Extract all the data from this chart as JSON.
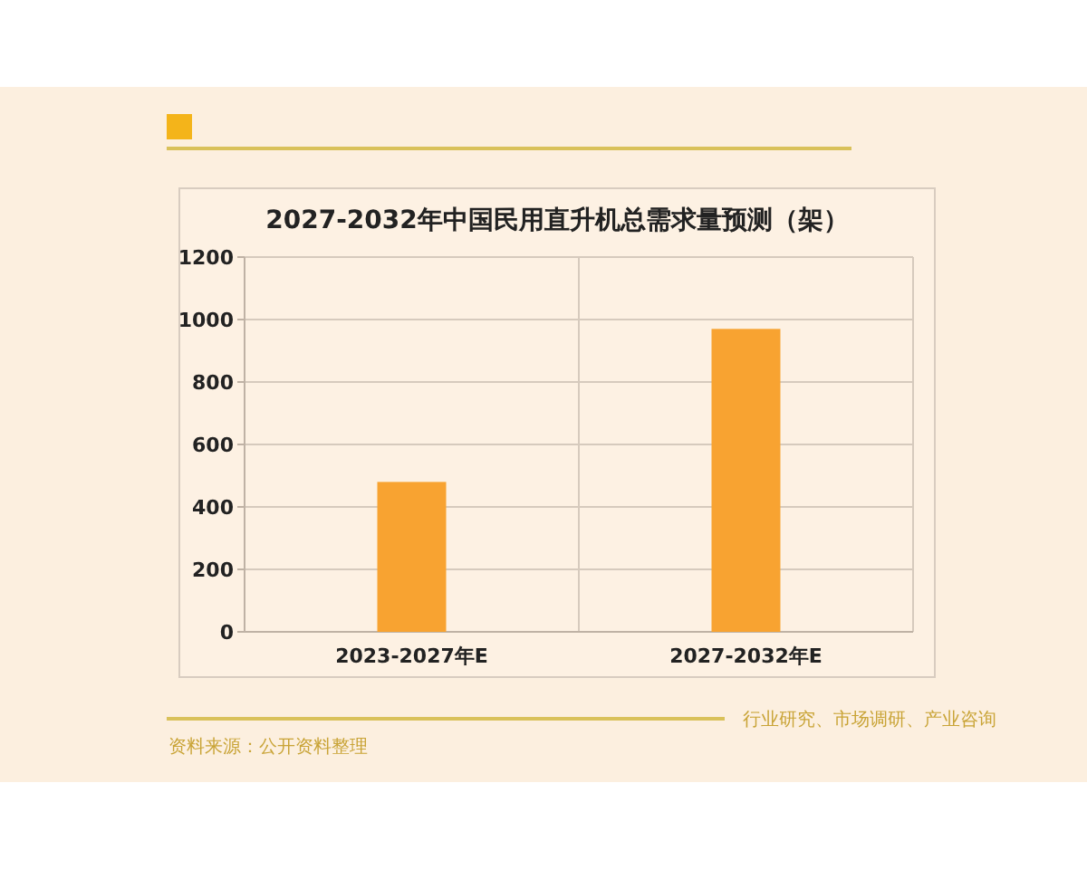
{
  "chart_data": {
    "type": "bar",
    "title": "2027-2032年中国民用直升机总需求量预测（架）",
    "categories": [
      "2023-2027年E",
      "2027-2032年E"
    ],
    "values": [
      480,
      970
    ],
    "color": "#f8a331",
    "ylim": [
      0,
      1200
    ],
    "yticks": [
      0,
      200,
      400,
      600,
      800,
      1000,
      1200
    ],
    "grid": true,
    "annotations": [
      "资料来源：公开资料整理",
      "行业研究、市场调研、产业咨询"
    ]
  }
}
